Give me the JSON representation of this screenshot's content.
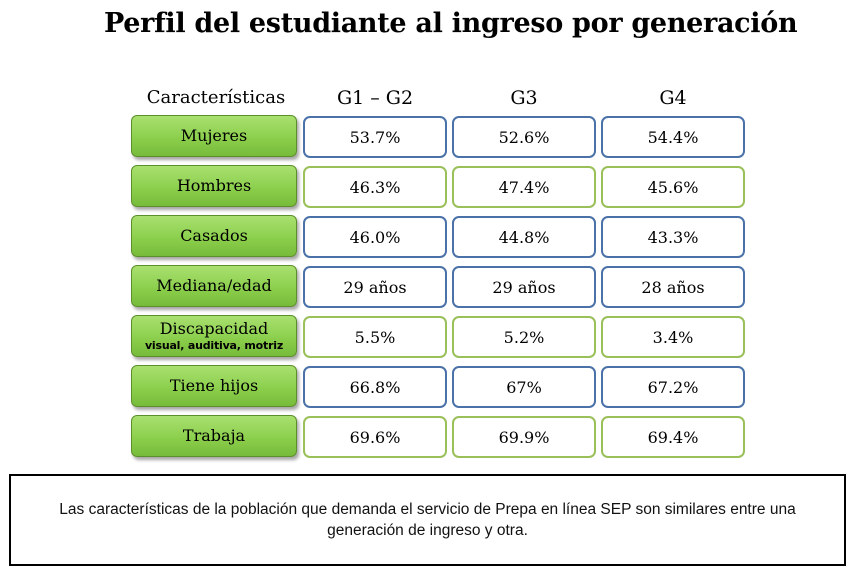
{
  "title": "Perfil del estudiante al ingreso por generación",
  "chart_data": {
    "type": "table",
    "header_label": "Características",
    "columns": [
      "G1 – G2",
      "G3",
      "G4"
    ],
    "rows": [
      {
        "label": "Mujeres",
        "sublabel": "",
        "values": [
          "53.7%",
          "52.6%",
          "54.4%"
        ],
        "border": "blue"
      },
      {
        "label": "Hombres",
        "sublabel": "",
        "values": [
          "46.3%",
          "47.4%",
          "45.6%"
        ],
        "border": "green"
      },
      {
        "label": "Casados",
        "sublabel": "",
        "values": [
          "46.0%",
          "44.8%",
          "43.3%"
        ],
        "border": "blue"
      },
      {
        "label": "Mediana/edad",
        "sublabel": "",
        "values": [
          "29 años",
          "29 años",
          "28 años"
        ],
        "border": "blue"
      },
      {
        "label": "Discapacidad",
        "sublabel": "visual, auditiva, motriz",
        "values": [
          "5.5%",
          "5.2%",
          "3.4%"
        ],
        "border": "green"
      },
      {
        "label": "Tiene hijos",
        "sublabel": "",
        "values": [
          "66.8%",
          "67%",
          "67.2%"
        ],
        "border": "blue"
      },
      {
        "label": "Trabaja",
        "sublabel": "",
        "values": [
          "69.6%",
          "69.9%",
          "69.4%"
        ],
        "border": "green"
      }
    ]
  },
  "colors": {
    "label_fill": "#8ccf4d",
    "blue_border": "#4a72a8",
    "green_border": "#9ac05a"
  },
  "note": "Las características de la población que demanda el servicio de Prepa en línea SEP son similares entre una generación de ingreso y otra."
}
